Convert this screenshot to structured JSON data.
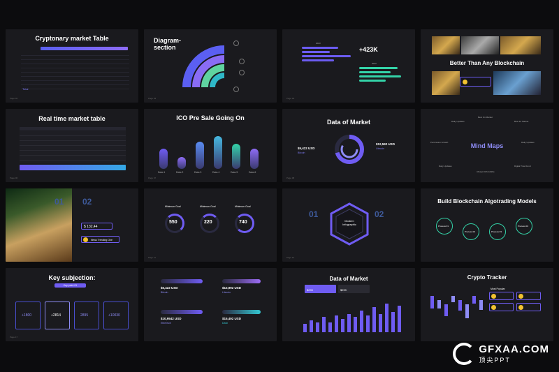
{
  "slides": {
    "s1": {
      "title": "Cryptonary market Table",
      "page": "Page 02",
      "rows": [
        "",
        "",
        "",
        "",
        "",
        "",
        "",
        ""
      ],
      "total": "Total"
    },
    "s2": {
      "title": "Diagram-\nsection",
      "page": "Page 03"
    },
    "s3": {
      "metric": "+423K",
      "year1": "2023",
      "year2": "2023",
      "page": "Page 04"
    },
    "s4": {
      "title": "Better Than Any Blockchain"
    },
    "s5": {
      "title": "Real time market table",
      "page": "Page 06"
    },
    "s6": {
      "title": "ICO Pre Sale Going On",
      "labels": [
        "Data 1",
        "Data 2",
        "Data 3",
        "Data 4",
        "Data 5",
        "Data 6"
      ],
      "values": [
        0.55,
        0.32,
        0.75,
        0.9,
        0.7,
        0.55
      ],
      "page": "Page 07"
    },
    "s7": {
      "title": "Data of Market",
      "left_value": "$5,422 USD",
      "left_label": "Bitcoin",
      "right_value": "$12,592 USD",
      "right_label": "Litecoin",
      "page": "Page 08"
    },
    "s8": {
      "title": "Mind Maps",
      "nodes": [
        "Daily Updates",
        "Best On Market",
        "Best for Market",
        "Permission Growth",
        "Daily Updates",
        "Daily Updates",
        "Always Refundable",
        "Digital Trust Fund"
      ]
    },
    "s9": {
      "num1": "01",
      "num2": "02",
      "price": "$ 132,44",
      "badge": "News Trending One"
    },
    "s10": {
      "goals": [
        "Minimum Goal",
        "Minimum Goal",
        "Minimum Goal"
      ],
      "values": [
        "550",
        "220",
        "740"
      ],
      "unit": "mil",
      "page": "Page 11"
    },
    "s11": {
      "num1": "01",
      "num2": "02",
      "center": "Modern\nInfographic",
      "page": "Page 12"
    },
    "s12": {
      "title": "Build Blockchain Algotrading Models",
      "steps": [
        "Process 01",
        "Process 02",
        "Process 03",
        "Process 04"
      ]
    },
    "s13": {
      "title": "Key subjection:",
      "tag": "Key point 01",
      "cards": [
        "+1800",
        "+2814",
        "2895",
        "+10030"
      ],
      "page": "Page 17"
    },
    "s14": {
      "items": [
        {
          "value": "$5,422 USD",
          "label": "Bitcoin"
        },
        {
          "value": "$12,992 USD",
          "label": "Litecoin"
        },
        {
          "value": "$10,9542 USD",
          "label": "Ethereum"
        },
        {
          "value": "$15,492 USD",
          "label": "Dash"
        }
      ]
    },
    "s15": {
      "title": "Data of Market",
      "stat1": "$299",
      "stat2": "$299",
      "bars": [
        0.25,
        0.35,
        0.3,
        0.45,
        0.3,
        0.5,
        0.4,
        0.55,
        0.45,
        0.65,
        0.5,
        0.75,
        0.55,
        0.85,
        0.6,
        0.8
      ]
    },
    "s16": {
      "title": "Crypto Tracker",
      "heading": "Most Popular",
      "candles": [
        0.6,
        0.4,
        0.55,
        0.3,
        0.5,
        0.65,
        0.35,
        0.45
      ]
    }
  },
  "watermark": {
    "brand": "GFXAA.COM",
    "sub": "顶尖PPT"
  },
  "colors": {
    "bg": "#0c0c0e",
    "slide": "#1a1a1e",
    "accent": "#6f5cf2",
    "teal": "#34d3a8",
    "gold": "#f2c230"
  }
}
